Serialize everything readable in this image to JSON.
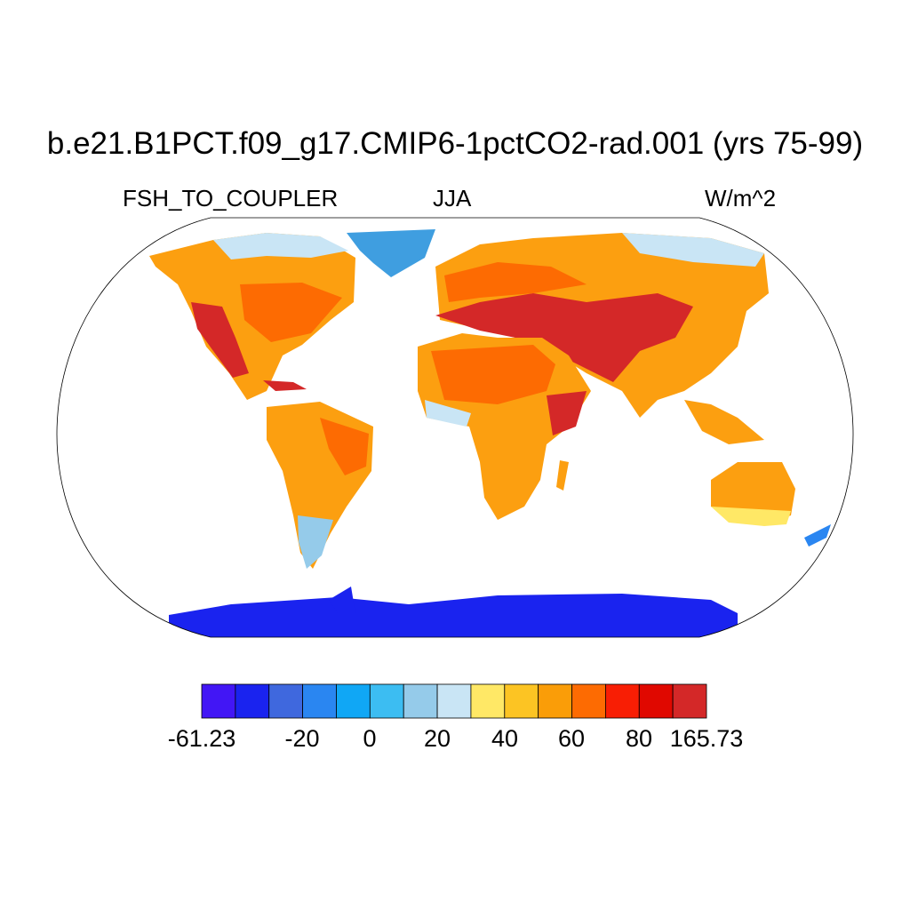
{
  "title": "b.e21.B1PCT.f09_g17.CMIP6-1pctCO2-rad.001 (yrs 75-99)",
  "subtitle_left": "FSH_TO_COUPLER",
  "subtitle_center": "JJA",
  "subtitle_right": "W/m^2",
  "colorbar": {
    "colors": [
      "#4216f5",
      "#1a23ef",
      "#3f68de",
      "#2a86f1",
      "#10a7f5",
      "#3cbdf2",
      "#95cbea",
      "#c9e5f5",
      "#ffe866",
      "#fcc423",
      "#fa9d08",
      "#fd6b02",
      "#f81e04",
      "#e00800",
      "#d42828"
    ],
    "tick_labels": [
      "-61.23",
      "-20",
      "0",
      "20",
      "40",
      "60",
      "80",
      "165.73"
    ]
  },
  "colors": {
    "ocean": "#ffffff",
    "warm_land": "#fc9f10",
    "hot_land": "#d42828",
    "cold_land": "#1a23ef"
  }
}
